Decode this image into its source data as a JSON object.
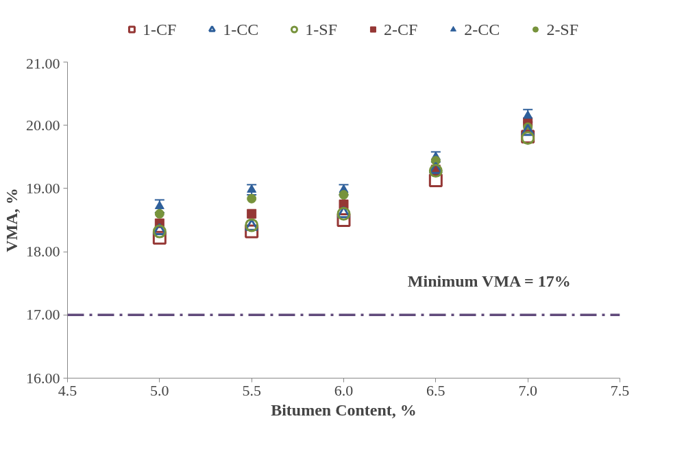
{
  "chart_data": {
    "type": "scatter",
    "xlabel": "Bitumen Content, %",
    "ylabel": "VMA, %",
    "x": [
      5.0,
      5.5,
      6.0,
      6.5,
      7.0
    ],
    "xlim": [
      4.5,
      7.5
    ],
    "xticks": [
      {
        "value": 4.5,
        "label": "4.5"
      },
      {
        "value": 5.0,
        "label": "5.0"
      },
      {
        "value": 5.5,
        "label": "5.5"
      },
      {
        "value": 6.0,
        "label": "6.0"
      },
      {
        "value": 6.5,
        "label": "6.5"
      },
      {
        "value": 7.0,
        "label": "7.0"
      },
      {
        "value": 7.5,
        "label": "7.5"
      }
    ],
    "ylim": [
      16,
      21
    ],
    "yticks": [
      {
        "value": 16,
        "label": "16.00"
      },
      {
        "value": 17,
        "label": "17.00"
      },
      {
        "value": 18,
        "label": "18.00"
      },
      {
        "value": 19,
        "label": "19.00"
      },
      {
        "value": 20,
        "label": "20.00"
      },
      {
        "value": 21,
        "label": "21.00"
      }
    ],
    "grid": false,
    "legend": "top",
    "series": [
      {
        "name": "1-CF",
        "color": "#953735",
        "marker": "square",
        "values": [
          18.22,
          18.32,
          18.5,
          19.13,
          19.82
        ]
      },
      {
        "name": "1-CC",
        "color": "#2e5f9a",
        "marker": "triangle",
        "values": [
          18.33,
          18.4,
          18.6,
          19.3,
          19.9
        ]
      },
      {
        "name": "1-SF",
        "color": "#77933c",
        "marker": "circle",
        "values": [
          18.32,
          18.42,
          18.6,
          19.28,
          19.8
        ]
      },
      {
        "name": "2-CF",
        "color": "#953735",
        "marker": "square",
        "values": [
          18.45,
          18.6,
          18.75,
          19.3,
          20.05
        ]
      },
      {
        "name": "2-CC",
        "color": "#2e5f9a",
        "marker": "triangle",
        "values": [
          18.72,
          18.98,
          18.98,
          19.5,
          20.15
        ],
        "errors": [
          0.1,
          0.08,
          0.08,
          0.08,
          0.1
        ]
      },
      {
        "name": "2-SF",
        "color": "#77933c",
        "marker": "circle",
        "values": [
          18.6,
          18.84,
          18.9,
          19.44,
          19.97
        ]
      }
    ],
    "ref_lines": [
      {
        "axis": "y",
        "value": 17,
        "label": "Minimum VMA = 17%",
        "color": "#604a7b",
        "line_style": "dashdot"
      }
    ]
  }
}
